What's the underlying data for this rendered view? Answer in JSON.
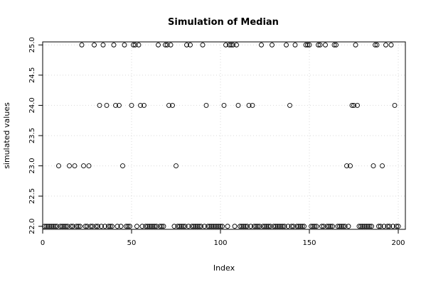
{
  "chart_data": {
    "type": "scatter",
    "title": "Simulation of Median",
    "xlabel": "Index",
    "ylabel": "simulated values",
    "xlim": [
      0,
      204
    ],
    "ylim": [
      21.95,
      25.05
    ],
    "xticks": [
      0,
      50,
      100,
      150,
      200
    ],
    "yticks": [
      22.0,
      22.5,
      23.0,
      23.5,
      24.0,
      24.5,
      25.0
    ],
    "ytick_labels": [
      "22.0",
      "22.5",
      "23.0",
      "23.5",
      "24.0",
      "24.5",
      "25.0"
    ],
    "grid": true,
    "series": [
      {
        "x": [
          1,
          2,
          3,
          4,
          5,
          6,
          7,
          8,
          9,
          10,
          11,
          12,
          13,
          14,
          15,
          16,
          17,
          18,
          19,
          20,
          21,
          22,
          23,
          24,
          25,
          26,
          27,
          28,
          29,
          30,
          31,
          32,
          33,
          34,
          35,
          36,
          37,
          38,
          39,
          40,
          41,
          42,
          43,
          44,
          45,
          46,
          47,
          48,
          49,
          50,
          51,
          52,
          53,
          54,
          55,
          56,
          57,
          58,
          59,
          60,
          61,
          62,
          63,
          64,
          65,
          66,
          67,
          68,
          69,
          70,
          71,
          72,
          73,
          74,
          75,
          76,
          77,
          78,
          79,
          80,
          81,
          82,
          83,
          84,
          85,
          86,
          87,
          88,
          89,
          90,
          91,
          92,
          93,
          94,
          95,
          96,
          97,
          98,
          99,
          100,
          101,
          102,
          103,
          104,
          105,
          106,
          107,
          108,
          109,
          110,
          111,
          112,
          113,
          114,
          115,
          116,
          117,
          118,
          119,
          120,
          121,
          122,
          123,
          124,
          125,
          126,
          127,
          128,
          129,
          130,
          131,
          132,
          133,
          134,
          135,
          136,
          137,
          138,
          139,
          140,
          141,
          142,
          143,
          144,
          145,
          146,
          147,
          148,
          149,
          150,
          151,
          152,
          153,
          154,
          155,
          156,
          157,
          158,
          159,
          160,
          161,
          162,
          163,
          164,
          165,
          166,
          167,
          168,
          169,
          170,
          171,
          172,
          173,
          174,
          175,
          176,
          177,
          178,
          179,
          180,
          181,
          182,
          183,
          184,
          185,
          186,
          187,
          188,
          189,
          190,
          191,
          192,
          193,
          194,
          195,
          196,
          197,
          198,
          199,
          200
        ],
        "y": [
          22,
          22,
          22,
          22,
          22,
          22,
          22,
          22,
          23,
          22,
          22,
          22,
          22,
          22,
          23,
          22,
          22,
          23,
          22,
          22,
          22,
          25,
          23,
          22,
          22,
          23,
          22,
          22,
          25,
          22,
          22,
          24,
          22,
          25,
          22,
          24,
          22,
          22,
          22,
          25,
          24,
          22,
          24,
          22,
          23,
          25,
          22,
          22,
          22,
          24,
          25,
          25,
          22,
          25,
          24,
          22,
          24,
          22,
          22,
          22,
          22,
          22,
          22,
          22,
          25,
          22,
          22,
          22,
          25,
          25,
          24,
          25,
          24,
          22,
          23,
          22,
          22,
          22,
          22,
          22,
          25,
          22,
          25,
          22,
          22,
          22,
          22,
          22,
          22,
          25,
          22,
          24,
          22,
          22,
          22,
          22,
          22,
          22,
          22,
          22,
          22,
          24,
          25,
          22,
          25,
          25,
          25,
          22,
          25,
          24,
          22,
          22,
          22,
          22,
          22,
          24,
          22,
          24,
          22,
          22,
          22,
          22,
          25,
          22,
          22,
          22,
          22,
          22,
          25,
          22,
          22,
          22,
          22,
          22,
          22,
          22,
          25,
          22,
          24,
          22,
          22,
          25,
          22,
          22,
          22,
          22,
          22,
          25,
          25,
          25,
          22,
          22,
          22,
          22,
          25,
          25,
          22,
          22,
          25,
          22,
          22,
          22,
          22,
          25,
          25,
          22,
          22,
          22,
          22,
          22,
          23,
          22,
          23,
          24,
          24,
          25,
          24,
          22,
          22,
          22,
          22,
          22,
          22,
          22,
          22,
          23,
          25,
          25,
          22,
          22,
          23,
          22,
          25,
          22,
          22,
          25,
          22,
          24,
          22,
          22
        ]
      }
    ]
  }
}
